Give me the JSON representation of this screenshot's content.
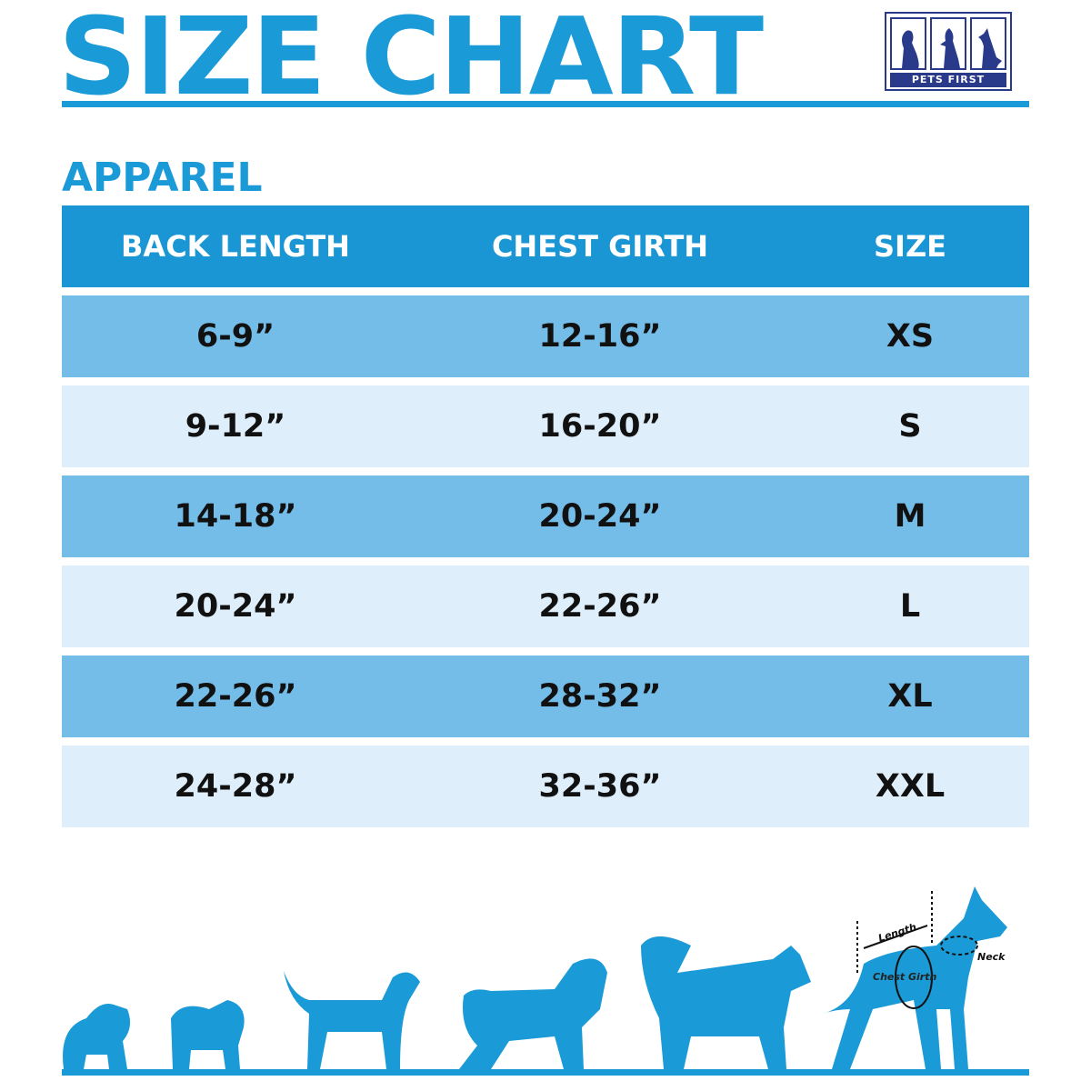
{
  "title": "SIZE CHART",
  "logo": {
    "brand": "PETS FIRST"
  },
  "section": "APPAREL",
  "table": {
    "headers": [
      "BACK LENGTH",
      "CHEST GIRTH",
      "SIZE"
    ],
    "rows": [
      [
        "6-9”",
        "12-16”",
        "XS"
      ],
      [
        "9-12”",
        "16-20”",
        "S"
      ],
      [
        "14-18”",
        "20-24”",
        "M"
      ],
      [
        "20-24”",
        "22-26”",
        "L"
      ],
      [
        "22-26”",
        "28-32”",
        "XL"
      ],
      [
        "24-28”",
        "32-36”",
        "XXL"
      ]
    ]
  },
  "diagram": {
    "length": "Length",
    "neck": "Neck",
    "chest": "Chest Girth"
  },
  "colors": {
    "primary": "#1a9ad6",
    "row_dark": "#74bde8",
    "row_light": "#deeefa",
    "logo": "#2a3a8a"
  }
}
